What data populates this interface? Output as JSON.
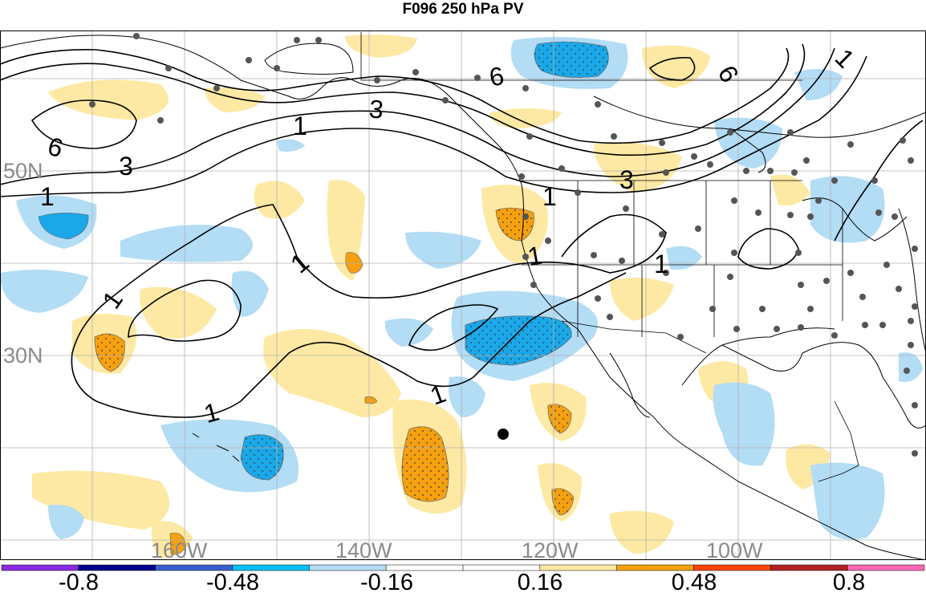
{
  "title": "F096 250 hPa PV",
  "map": {
    "lon_labels": [
      "160W",
      "140W",
      "120W",
      "100W"
    ],
    "lat_labels": [
      "50N",
      "30N"
    ],
    "contour_labels": [
      "6",
      "3",
      "1",
      "1",
      "6",
      "3",
      "1",
      "1",
      "1",
      "1",
      "1",
      "1",
      "1",
      "6",
      "3",
      "1"
    ],
    "colors": {
      "pos_light": "#fde9a3",
      "pos_mid": "#f5a00f",
      "neg_light": "#b3dcf5",
      "neg_mid": "#1aa8e8",
      "coast": "#000000",
      "grid": "#b0b0b0",
      "station_dot": "#555555"
    },
    "markers": [
      "station-dots",
      "point-marker"
    ]
  },
  "colorbar": {
    "tick_labels": [
      "-0.8",
      "-0.48",
      "-0.16",
      "0.16",
      "0.48",
      "0.8"
    ],
    "segment_colors": [
      "#8a2be2",
      "#00008b",
      "#3a5fcd",
      "#00bfff",
      "#b3dcf5",
      "#ffffff",
      "#ffffff",
      "#fde9a3",
      "#f5a00f",
      "#ff4500",
      "#b22222",
      "#ff69b4"
    ]
  }
}
